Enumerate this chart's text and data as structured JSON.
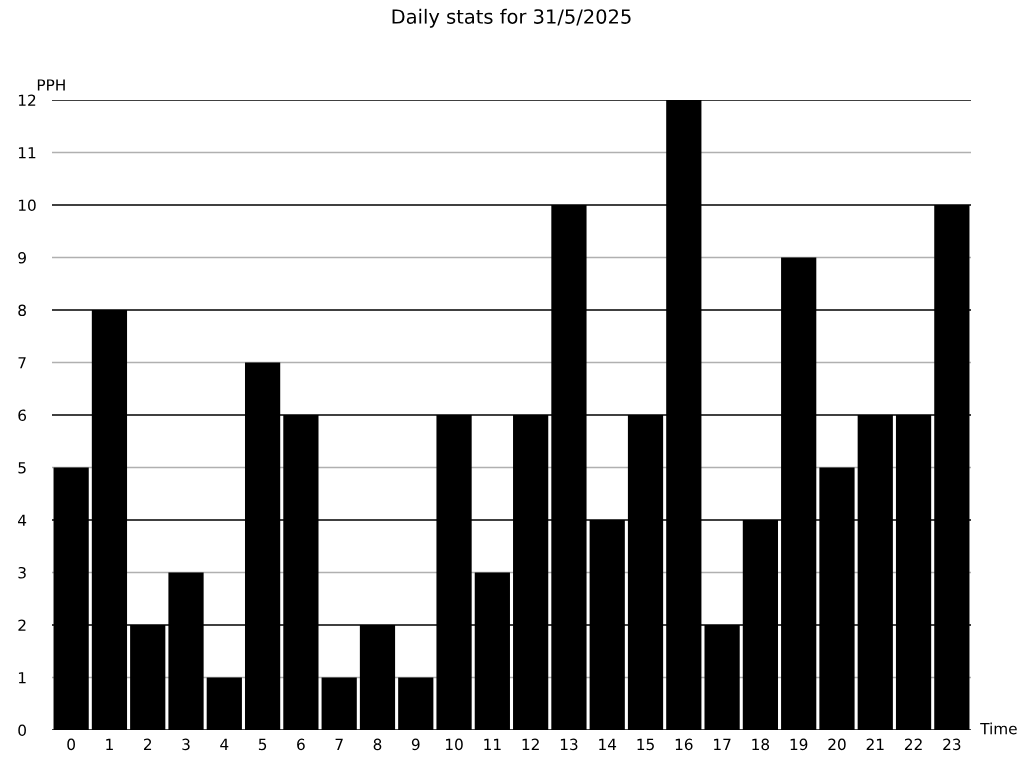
{
  "chart_data": {
    "type": "bar",
    "title": "Daily stats for 31/5/2025",
    "xlabel": "Time",
    "ylabel": "PPH",
    "categories": [
      "0",
      "1",
      "2",
      "3",
      "4",
      "5",
      "6",
      "7",
      "8",
      "9",
      "10",
      "11",
      "12",
      "13",
      "14",
      "15",
      "16",
      "17",
      "18",
      "19",
      "20",
      "21",
      "22",
      "23"
    ],
    "values": [
      5,
      8,
      2,
      3,
      1,
      7,
      6,
      1,
      2,
      1,
      6,
      3,
      6,
      10,
      4,
      6,
      12,
      2,
      4,
      9,
      5,
      6,
      6,
      10
    ],
    "color": "#000000",
    "ylim": [
      0,
      12
    ],
    "yticks": [
      0,
      1,
      2,
      3,
      4,
      5,
      6,
      7,
      8,
      9,
      10,
      11,
      12
    ],
    "grid": "y",
    "legend": false
  }
}
